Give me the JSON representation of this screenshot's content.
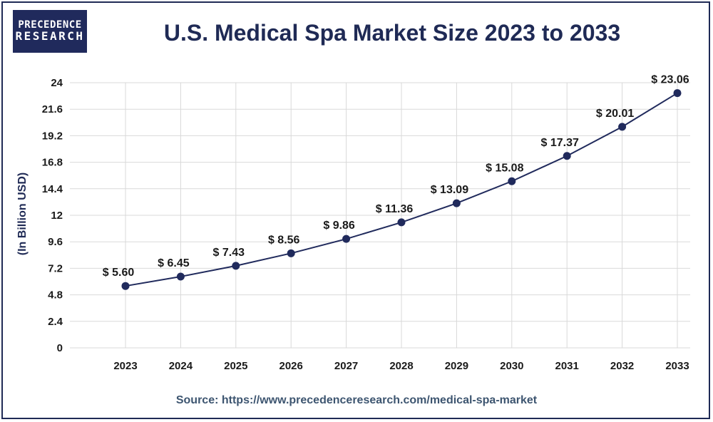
{
  "logo": {
    "line1": "PRECEDENCE",
    "line2": "RESEARCH"
  },
  "source": "Source: https://www.precedenceresearch.com/medical-spa-market",
  "colors": {
    "line": "#202a5c",
    "marker": "#202a5c",
    "grid": "#d9d9d9",
    "title": "#1f2a55"
  },
  "chart_data": {
    "type": "line",
    "title": "U.S. Medical Spa Market Size 2023 to 2033",
    "xlabel": "",
    "ylabel": "(In Billion USD)",
    "categories": [
      "2023",
      "2024",
      "2025",
      "2026",
      "2027",
      "2028",
      "2029",
      "2030",
      "2031",
      "2032",
      "2033"
    ],
    "series": [
      {
        "name": "U.S. Medical Spa Market Size",
        "values": [
          5.6,
          6.45,
          7.43,
          8.56,
          9.86,
          11.36,
          13.09,
          15.08,
          17.37,
          20.01,
          23.06
        ],
        "labels": [
          "$ 5.60",
          "$ 6.45",
          "$ 7.43",
          "$ 8.56",
          "$ 9.86",
          "$ 11.36",
          "$ 13.09",
          "$ 15.08",
          "$ 17.37",
          "$ 20.01",
          "$ 23.06"
        ]
      }
    ],
    "ylim": [
      0,
      24
    ],
    "yticks": [
      "0",
      "2.4",
      "4.8",
      "7.2",
      "9.6",
      "12",
      "14.4",
      "16.8",
      "19.2",
      "21.6",
      "24"
    ],
    "grid": true,
    "legend": "none"
  }
}
